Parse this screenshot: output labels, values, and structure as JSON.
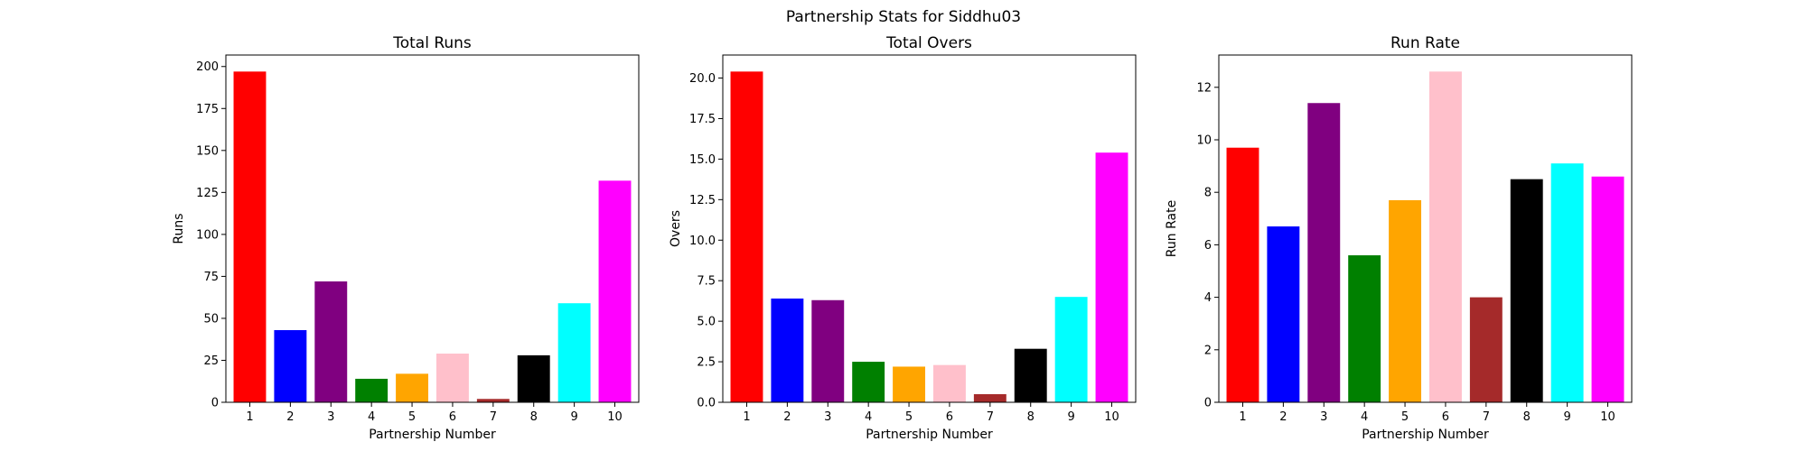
{
  "figure": {
    "title": "Partnership Stats for Siddhu03"
  },
  "chart_data": [
    {
      "type": "bar",
      "title": "Total Runs",
      "xlabel": "Partnership Number",
      "ylabel": "Runs",
      "categories": [
        "1",
        "2",
        "3",
        "4",
        "5",
        "6",
        "7",
        "8",
        "9",
        "10"
      ],
      "values": [
        197,
        43,
        72,
        14,
        17,
        29,
        2,
        28,
        59,
        132
      ],
      "colors": [
        "#ff0000",
        "#0000ff",
        "#800080",
        "#008000",
        "#ffa500",
        "#ffc0cb",
        "#a52a2a",
        "#000000",
        "#00ffff",
        "#ff00ff"
      ],
      "ylim": [
        0,
        206.85
      ],
      "yticks": [
        0,
        25,
        50,
        75,
        100,
        125,
        150,
        175,
        200
      ],
      "ytick_labels": [
        "0",
        "25",
        "50",
        "75",
        "100",
        "125",
        "150",
        "175",
        "200"
      ]
    },
    {
      "type": "bar",
      "title": "Total Overs",
      "xlabel": "Partnership Number",
      "ylabel": "Overs",
      "categories": [
        "1",
        "2",
        "3",
        "4",
        "5",
        "6",
        "7",
        "8",
        "9",
        "10"
      ],
      "values": [
        20.4,
        6.4,
        6.3,
        2.5,
        2.2,
        2.3,
        0.5,
        3.3,
        6.5,
        15.4
      ],
      "colors": [
        "#ff0000",
        "#0000ff",
        "#800080",
        "#008000",
        "#ffa500",
        "#ffc0cb",
        "#a52a2a",
        "#000000",
        "#00ffff",
        "#ff00ff"
      ],
      "ylim": [
        0,
        21.42
      ],
      "yticks": [
        0,
        2.5,
        5,
        7.5,
        10,
        12.5,
        15,
        17.5,
        20
      ],
      "ytick_labels": [
        "0.0",
        "2.5",
        "5.0",
        "7.5",
        "10.0",
        "12.5",
        "15.0",
        "17.5",
        "20.0"
      ]
    },
    {
      "type": "bar",
      "title": "Run Rate",
      "xlabel": "Partnership Number",
      "ylabel": "Run Rate",
      "categories": [
        "1",
        "2",
        "3",
        "4",
        "5",
        "6",
        "7",
        "8",
        "9",
        "10"
      ],
      "values": [
        9.7,
        6.7,
        11.4,
        5.6,
        7.7,
        12.6,
        4.0,
        8.5,
        9.1,
        8.6
      ],
      "colors": [
        "#ff0000",
        "#0000ff",
        "#800080",
        "#008000",
        "#ffa500",
        "#ffc0cb",
        "#a52a2a",
        "#000000",
        "#00ffff",
        "#ff00ff"
      ],
      "ylim": [
        0,
        13.23
      ],
      "yticks": [
        0,
        2,
        4,
        6,
        8,
        10,
        12
      ],
      "ytick_labels": [
        "0",
        "2",
        "4",
        "6",
        "8",
        "10",
        "12"
      ]
    }
  ]
}
